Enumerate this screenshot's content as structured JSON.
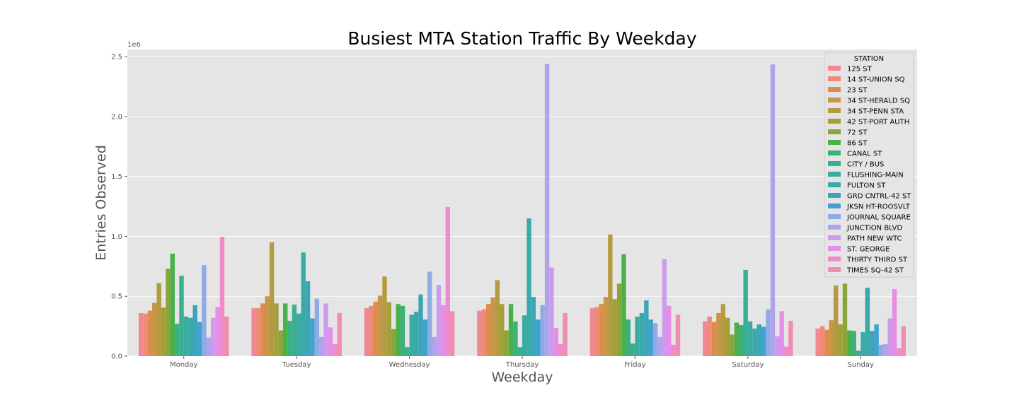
{
  "chart_data": {
    "type": "bar",
    "title": "Busiest MTA Station Traffic By Weekday",
    "xlabel": "Weekday",
    "ylabel": "Entries Observed",
    "y_offset_label": "1e6",
    "y_scale": 1000000,
    "ylim": [
      0,
      2.56
    ],
    "yticks": [
      0.0,
      0.5,
      1.0,
      1.5,
      2.0,
      2.5
    ],
    "ytick_labels": [
      "0.0",
      "0.5",
      "1.0",
      "1.5",
      "2.0",
      "2.5"
    ],
    "grid": true,
    "legend_position": "top-right",
    "legend_title": "STATION",
    "categories": [
      "Monday",
      "Tuesday",
      "Wednesday",
      "Thursday",
      "Friday",
      "Saturday",
      "Sunday"
    ],
    "series": [
      {
        "name": "125 ST",
        "color": "#f08891",
        "values": [
          0.36,
          0.4,
          0.4,
          0.38,
          0.4,
          0.29,
          0.23
        ]
      },
      {
        "name": "14 ST-UNION SQ",
        "color": "#ee8a78",
        "values": [
          0.355,
          0.4,
          0.42,
          0.39,
          0.41,
          0.33,
          0.25
        ]
      },
      {
        "name": "23 ST",
        "color": "#de8c4b",
        "values": [
          0.38,
          0.44,
          0.455,
          0.435,
          0.435,
          0.285,
          0.22
        ]
      },
      {
        "name": "34 ST-HERALD SQ",
        "color": "#c99547",
        "values": [
          0.445,
          0.5,
          0.505,
          0.49,
          0.495,
          0.36,
          0.3
        ]
      },
      {
        "name": "34 ST-PENN STA",
        "color": "#b59b40",
        "values": [
          0.61,
          0.95,
          0.665,
          0.635,
          1.015,
          0.435,
          0.59
        ]
      },
      {
        "name": "42 ST-PORT AUTH",
        "color": "#a3a03a",
        "values": [
          0.405,
          0.44,
          0.45,
          0.435,
          0.475,
          0.32,
          0.265
        ]
      },
      {
        "name": "72 ST",
        "color": "#8aa63a",
        "values": [
          0.73,
          0.215,
          0.225,
          0.215,
          0.605,
          0.18,
          0.605
        ]
      },
      {
        "name": "86 ST",
        "color": "#4ab04a",
        "values": [
          0.855,
          0.44,
          0.435,
          0.435,
          0.85,
          0.28,
          0.215
        ]
      },
      {
        "name": "CANAL ST",
        "color": "#3bb07a",
        "values": [
          0.27,
          0.295,
          0.42,
          0.29,
          0.305,
          0.26,
          0.21
        ]
      },
      {
        "name": "CITY / BUS",
        "color": "#3aae93",
        "values": [
          0.67,
          0.43,
          0.075,
          0.075,
          0.105,
          0.72,
          0.045
        ]
      },
      {
        "name": "FLUSHING-MAIN",
        "color": "#3aab9e",
        "values": [
          0.33,
          0.355,
          0.345,
          0.34,
          0.33,
          0.29,
          0.2
        ]
      },
      {
        "name": "FULTON ST",
        "color": "#3aa9aa",
        "values": [
          0.32,
          0.865,
          0.37,
          1.15,
          0.36,
          0.23,
          0.57
        ]
      },
      {
        "name": "GRD CNTRL-42 ST",
        "color": "#3ba6b8",
        "values": [
          0.425,
          0.625,
          0.515,
          0.495,
          0.465,
          0.265,
          0.21
        ]
      },
      {
        "name": "JKSN HT-ROOSVLT",
        "color": "#3fa2cf",
        "values": [
          0.285,
          0.315,
          0.305,
          0.305,
          0.305,
          0.245,
          0.265
        ]
      },
      {
        "name": "JOURNAL SQUARE",
        "color": "#8fabe6",
        "values": [
          0.76,
          0.48,
          0.705,
          0.425,
          0.275,
          0.39,
          0.095
        ]
      },
      {
        "name": "JUNCTION BLVD",
        "color": "#b0a3ec",
        "values": [
          0.155,
          0.16,
          0.16,
          2.44,
          0.16,
          2.435,
          0.1
        ]
      },
      {
        "name": "PATH NEW WTC",
        "color": "#cd9bee",
        "values": [
          0.32,
          0.44,
          0.595,
          0.74,
          0.81,
          0.165,
          0.315
        ]
      },
      {
        "name": "ST. GEORGE",
        "color": "#e68de8",
        "values": [
          0.41,
          0.24,
          0.425,
          0.235,
          0.42,
          0.375,
          0.56
        ]
      },
      {
        "name": "THIRTY THIRD ST",
        "color": "#f08bc9",
        "values": [
          0.995,
          0.1,
          1.245,
          0.1,
          0.095,
          0.08,
          0.065
        ]
      },
      {
        "name": "TIMES SQ-42 ST",
        "color": "#f08db0",
        "values": [
          0.33,
          0.36,
          0.375,
          0.36,
          0.345,
          0.295,
          0.25
        ]
      }
    ]
  }
}
